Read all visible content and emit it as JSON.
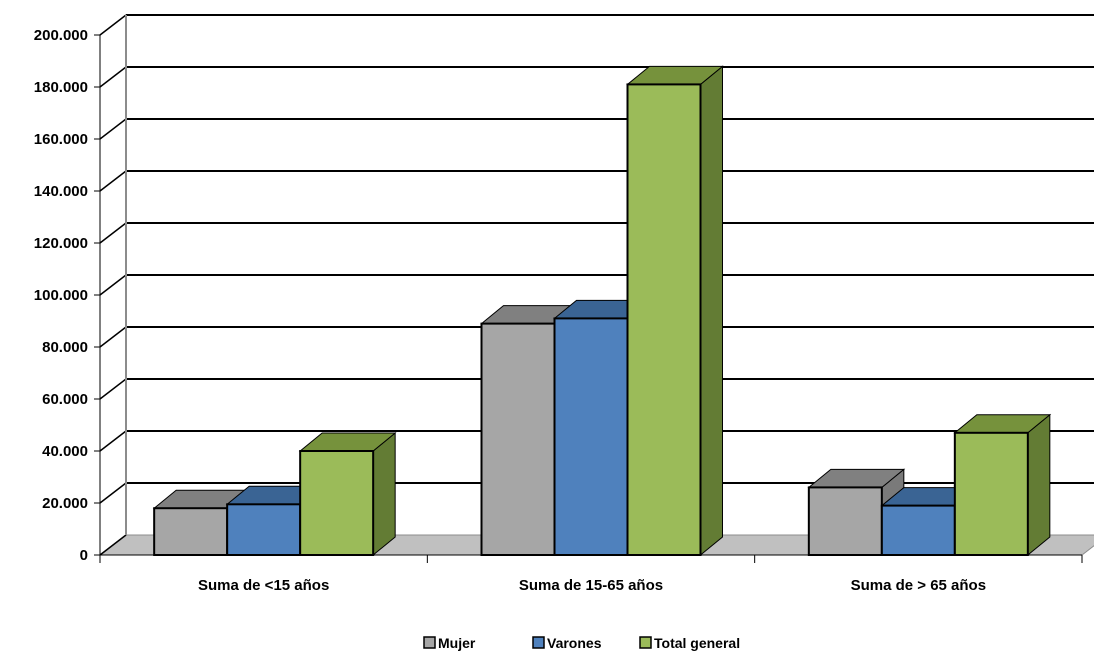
{
  "chart_data": {
    "type": "bar",
    "categories": [
      "Suma de <15 años",
      "Suma de 15-65 años",
      "Suma de > 65 años"
    ],
    "series": [
      {
        "name": "Mujer",
        "values": [
          18000,
          89000,
          26000
        ],
        "color": "#a6a6a6",
        "top": "#808080",
        "side": "#7a7a7a"
      },
      {
        "name": "Varones",
        "values": [
          19500,
          91000,
          19000
        ],
        "color": "#4f81bd",
        "top": "#3a6494",
        "side": "#2f5580"
      },
      {
        "name": "Total general",
        "values": [
          40000,
          181000,
          47000
        ],
        "color": "#9bbb59",
        "top": "#76923c",
        "side": "#637c34"
      }
    ],
    "yticks": [
      "0",
      "20.000",
      "40.000",
      "60.000",
      "80.000",
      "100.000",
      "120.000",
      "140.000",
      "160.000",
      "180.000",
      "200.000"
    ],
    "ylim": [
      0,
      200000
    ],
    "legend_position": "bottom",
    "grid": true,
    "three_d": true
  }
}
